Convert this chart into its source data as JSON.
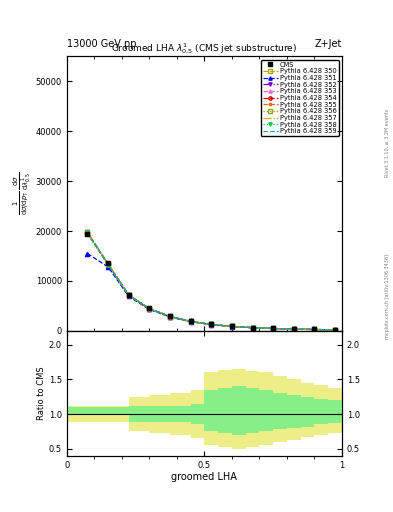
{
  "title_top": "13000 GeV pp",
  "title_right": "Z+Jet",
  "plot_title": "Groomed LHA $\\lambda^{1}_{0.5}$ (CMS jet substructure)",
  "xlabel": "groomed LHA",
  "ylabel_ratio": "Ratio to CMS",
  "right_label1": "Rivet 3.1.10, ≥ 3.2M events",
  "right_label2": "mcplots.cern.ch [arXiv:1306.3436]",
  "cms_x": [
    0.075,
    0.15,
    0.225,
    0.3,
    0.375,
    0.45,
    0.525,
    0.6,
    0.675,
    0.75,
    0.825,
    0.9,
    0.975
  ],
  "cms_y": [
    19500,
    13500,
    7200,
    4500,
    2900,
    1900,
    1300,
    900,
    650,
    480,
    360,
    280,
    215
  ],
  "pythia_x": [
    0.075,
    0.15,
    0.225,
    0.3,
    0.375,
    0.45,
    0.525,
    0.6,
    0.675,
    0.75,
    0.825,
    0.9,
    0.975
  ],
  "pythia_350_y": [
    19500,
    13200,
    7100,
    4400,
    2850,
    1880,
    1280,
    880,
    640,
    470,
    355,
    275,
    210
  ],
  "pythia_351_y": [
    15500,
    12800,
    6900,
    4300,
    2780,
    1830,
    1250,
    860,
    625,
    460,
    348,
    270,
    206
  ],
  "pythia_352_y": [
    19800,
    13400,
    7200,
    4480,
    2900,
    1910,
    1300,
    895,
    648,
    477,
    360,
    279,
    213
  ],
  "pythia_353_y": [
    19600,
    13300,
    7150,
    4450,
    2870,
    1895,
    1290,
    887,
    644,
    473,
    357,
    277,
    212
  ],
  "pythia_354_y": [
    19700,
    13350,
    7180,
    4460,
    2880,
    1900,
    1295,
    890,
    646,
    475,
    358,
    278,
    212
  ],
  "pythia_355_y": [
    19750,
    13380,
    7190,
    4470,
    2890,
    1905,
    1298,
    892,
    647,
    476,
    359,
    278,
    213
  ],
  "pythia_356_y": [
    19800,
    13420,
    7210,
    4490,
    2905,
    1915,
    1305,
    897,
    650,
    478,
    361,
    280,
    214
  ],
  "pythia_357_y": [
    19650,
    13320,
    7160,
    4455,
    2875,
    1897,
    1292,
    888,
    645,
    474,
    357,
    277,
    212
  ],
  "pythia_358_y": [
    19550,
    13250,
    7120,
    4420,
    2855,
    1885,
    1282,
    882,
    641,
    471,
    355,
    275,
    211
  ],
  "pythia_359_y": [
    19620,
    13340,
    7170,
    4460,
    2882,
    1900,
    1294,
    889,
    645,
    474,
    358,
    277,
    212
  ],
  "series": [
    {
      "label": "Pythia 6.428 350",
      "color": "#aaaa00",
      "linestyle": "--",
      "marker": "s",
      "markerfill": "none",
      "key": "pythia_350_y"
    },
    {
      "label": "Pythia 6.428 351",
      "color": "#0000ff",
      "linestyle": "--",
      "marker": "^",
      "markerfill": "full",
      "key": "pythia_351_y"
    },
    {
      "label": "Pythia 6.428 352",
      "color": "#7700cc",
      "linestyle": "-.",
      "marker": "v",
      "markerfill": "full",
      "key": "pythia_352_y"
    },
    {
      "label": "Pythia 6.428 353",
      "color": "#ff66bb",
      "linestyle": "--",
      "marker": "^",
      "markerfill": "none",
      "key": "pythia_353_y"
    },
    {
      "label": "Pythia 6.428 354",
      "color": "#cc0000",
      "linestyle": "--",
      "marker": "o",
      "markerfill": "none",
      "key": "pythia_354_y"
    },
    {
      "label": "Pythia 6.428 355",
      "color": "#ff6600",
      "linestyle": "--",
      "marker": "*",
      "markerfill": "full",
      "key": "pythia_355_y"
    },
    {
      "label": "Pythia 6.428 356",
      "color": "#88aa00",
      "linestyle": ":",
      "marker": "s",
      "markerfill": "none",
      "key": "pythia_356_y"
    },
    {
      "label": "Pythia 6.428 357",
      "color": "#ccaa00",
      "linestyle": "-.",
      "marker": "none",
      "markerfill": "none",
      "key": "pythia_357_y"
    },
    {
      "label": "Pythia 6.428 358",
      "color": "#00cc44",
      "linestyle": ":",
      "marker": "v",
      "markerfill": "full",
      "key": "pythia_358_y"
    },
    {
      "label": "Pythia 6.428 359",
      "color": "#00aaaa",
      "linestyle": "--",
      "marker": "none",
      "markerfill": "none",
      "key": "pythia_359_y"
    }
  ],
  "ratio_x_edges": [
    0.0,
    0.075,
    0.15,
    0.225,
    0.3,
    0.375,
    0.45,
    0.5,
    0.55,
    0.6,
    0.65,
    0.7,
    0.75,
    0.8,
    0.85,
    0.9,
    0.95,
    1.0
  ],
  "ratio_green_lo": [
    1.0,
    1.0,
    1.0,
    0.88,
    0.88,
    0.88,
    0.85,
    0.75,
    0.72,
    0.7,
    0.72,
    0.75,
    0.78,
    0.8,
    0.82,
    0.85,
    0.87,
    0.87
  ],
  "ratio_green_hi": [
    1.1,
    1.1,
    1.1,
    1.12,
    1.12,
    1.12,
    1.15,
    1.35,
    1.38,
    1.4,
    1.38,
    1.35,
    1.3,
    1.28,
    1.25,
    1.22,
    1.2,
    1.2
  ],
  "ratio_yellow_lo": [
    0.88,
    0.88,
    0.88,
    0.75,
    0.72,
    0.7,
    0.65,
    0.55,
    0.52,
    0.5,
    0.52,
    0.55,
    0.6,
    0.63,
    0.67,
    0.7,
    0.73,
    0.73
  ],
  "ratio_yellow_hi": [
    1.12,
    1.12,
    1.12,
    1.25,
    1.28,
    1.3,
    1.35,
    1.6,
    1.63,
    1.65,
    1.62,
    1.6,
    1.55,
    1.5,
    1.45,
    1.42,
    1.38,
    1.38
  ],
  "ylim_main": [
    0,
    55000
  ],
  "ylim_ratio": [
    0.4,
    2.2
  ],
  "yticks_main": [
    0,
    10000,
    20000,
    30000,
    40000,
    50000
  ],
  "ytick_labels_main": [
    "0",
    "10000",
    "20000",
    "30000",
    "40000",
    "50000"
  ],
  "yticks_ratio": [
    0.5,
    1.0,
    1.5,
    2.0
  ],
  "bg_color": "#ffffff"
}
